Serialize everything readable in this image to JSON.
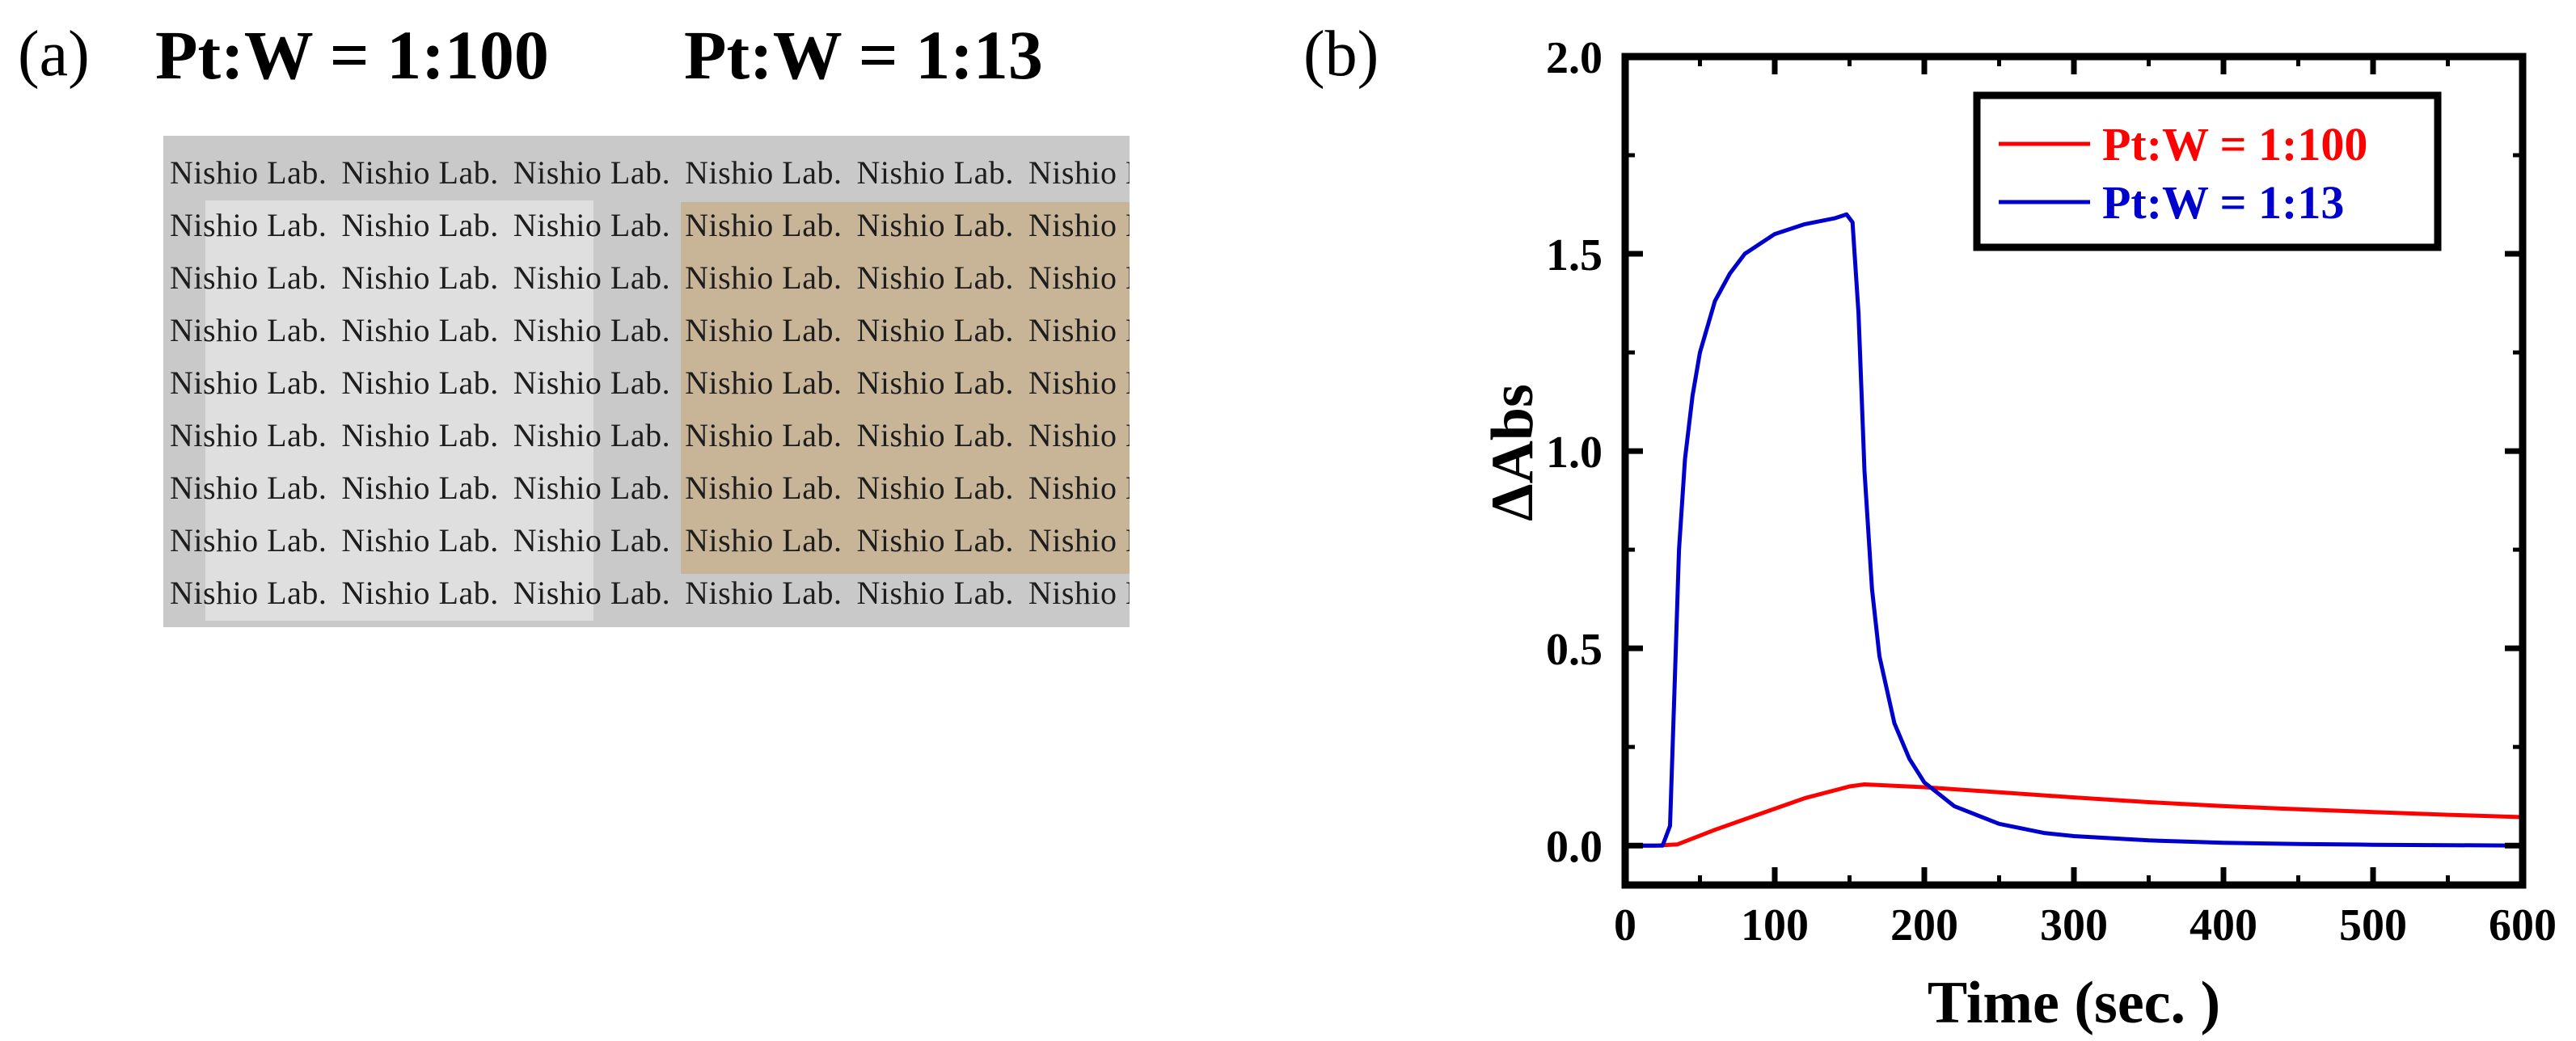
{
  "panels": {
    "a_label": "(a)",
    "b_label": "(b)"
  },
  "photo": {
    "title_left": "Pt:W = 1:100",
    "title_right": "Pt:W = 1:13",
    "watermark_text": "Nishio Lab."
  },
  "colors": {
    "series_red": "#ff0000",
    "series_blue": "#0000cc",
    "axis": "#000000"
  },
  "chart_data": {
    "type": "line",
    "title": "",
    "xlabel": "Time (sec. )",
    "ylabel": "ΔAbs",
    "xlim": [
      0,
      600
    ],
    "ylim": [
      -0.1,
      2.0
    ],
    "xticks": [
      0,
      100,
      200,
      300,
      400,
      500,
      600
    ],
    "xtick_labels": [
      "0",
      "100",
      "200",
      "300",
      "400",
      "500",
      "600"
    ],
    "yticks": [
      0.0,
      0.5,
      1.0,
      1.5,
      2.0
    ],
    "ytick_labels": [
      "0.0",
      "0.5",
      "1.0",
      "1.5",
      "2.0"
    ],
    "legend": "top-right",
    "series": [
      {
        "name": "Pt:W = 1:100",
        "color": "#ff0000",
        "x": [
          0,
          20,
          35,
          60,
          90,
          120,
          150,
          160,
          200,
          250,
          300,
          350,
          400,
          450,
          500,
          550,
          600
        ],
        "y": [
          0.0,
          0.0,
          0.003,
          0.04,
          0.08,
          0.12,
          0.15,
          0.155,
          0.148,
          0.135,
          0.122,
          0.11,
          0.1,
          0.092,
          0.085,
          0.078,
          0.072
        ]
      },
      {
        "name": "Pt:W = 1:13",
        "color": "#0000cc",
        "x": [
          0,
          25,
          30,
          33,
          36,
          40,
          45,
          50,
          60,
          70,
          80,
          100,
          120,
          140,
          148,
          152,
          156,
          160,
          165,
          170,
          180,
          190,
          200,
          220,
          250,
          280,
          300,
          350,
          400,
          450,
          500,
          550,
          600
        ],
        "y": [
          0.0,
          0.0,
          0.05,
          0.4,
          0.75,
          0.98,
          1.14,
          1.25,
          1.38,
          1.45,
          1.5,
          1.55,
          1.575,
          1.59,
          1.6,
          1.58,
          1.35,
          0.95,
          0.65,
          0.48,
          0.31,
          0.22,
          0.16,
          0.1,
          0.055,
          0.032,
          0.024,
          0.013,
          0.007,
          0.004,
          0.002,
          0.001,
          0.0
        ]
      }
    ]
  }
}
